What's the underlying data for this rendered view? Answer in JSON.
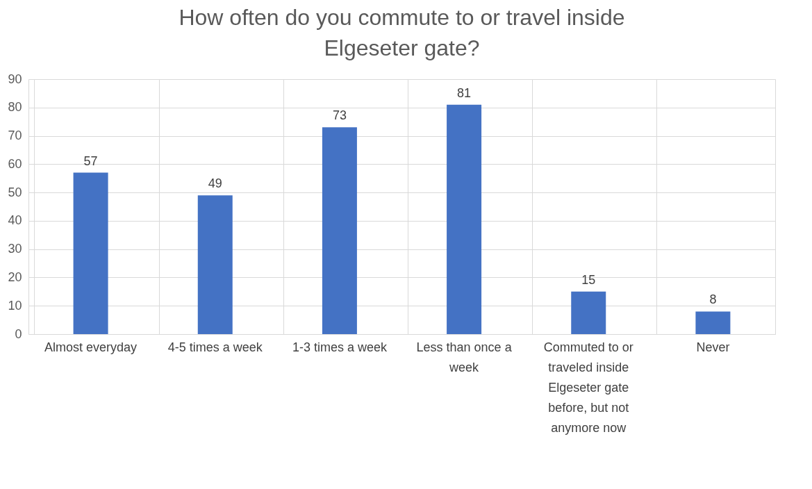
{
  "chart_data": {
    "type": "bar",
    "title": "How often do you commute to or travel inside Elgeseter gate?",
    "categories": [
      "Almost everyday",
      "4-5 times a week",
      "1-3 times a week",
      "Less than once a week",
      "Commuted to or traveled inside Elgeseter gate before, but not anymore now",
      "Never"
    ],
    "values": [
      57,
      49,
      73,
      81,
      15,
      8
    ],
    "color": "#4472c4",
    "ylim": [
      0,
      90
    ],
    "yticks": [
      0,
      10,
      20,
      30,
      40,
      50,
      60,
      70,
      80,
      90
    ],
    "grid": true,
    "data_labels": true
  }
}
